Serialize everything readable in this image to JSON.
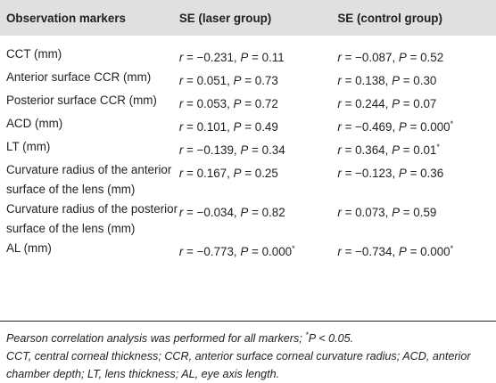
{
  "table": {
    "headers": [
      "Observation markers",
      "SE (laser group)",
      "SE (control group)"
    ],
    "rows": [
      {
        "marker": "CCT (mm)",
        "laser": {
          "r": "−0.231",
          "p": "0.11",
          "sig": ""
        },
        "control": {
          "r": "−0.087",
          "p": "0.52",
          "sig": ""
        }
      },
      {
        "marker": "Anterior surface CCR (mm)",
        "laser": {
          "r": "0.051",
          "p": "0.73",
          "sig": ""
        },
        "control": {
          "r": "0.138",
          "p": "0.30",
          "sig": ""
        }
      },
      {
        "marker": "Posterior surface CCR (mm)",
        "laser": {
          "r": "0.053",
          "p": "0.72",
          "sig": ""
        },
        "control": {
          "r": "0.244",
          "p": "0.07",
          "sig": ""
        }
      },
      {
        "marker": "ACD (mm)",
        "laser": {
          "r": "0.101",
          "p": "0.49",
          "sig": ""
        },
        "control": {
          "r": "−0.469",
          "p": "0.000",
          "sig": "*"
        }
      },
      {
        "marker": "LT (mm)",
        "laser": {
          "r": "−0.139",
          "p": "0.34",
          "sig": ""
        },
        "control": {
          "r": "0.364",
          "p": "0.01",
          "sig": "*"
        }
      },
      {
        "marker": "Curvature radius of the anterior surface of the lens (mm)",
        "laser": {
          "r": "0.167",
          "p": "0.25",
          "sig": ""
        },
        "control": {
          "r": "−0.123",
          "p": "0.36",
          "sig": ""
        }
      },
      {
        "marker": "Curvature radius of the posterior surface of the lens (mm)",
        "laser": {
          "r": "−0.034",
          "p": "0.82",
          "sig": ""
        },
        "control": {
          "r": "0.073",
          "p": "0.59",
          "sig": ""
        }
      },
      {
        "marker": "AL (mm)",
        "laser": {
          "r": "−0.773",
          "p": "0.000",
          "sig": "*"
        },
        "control": {
          "r": "−0.734",
          "p": "0.000",
          "sig": "*"
        }
      }
    ]
  },
  "notes": {
    "line1_prefix": "Pearson correlation analysis was performed for all markers; ",
    "line1_star": "*",
    "line1_suffix": "P < 0.05.",
    "line2": "CCT, central corneal thickness; CCR, anterior surface corneal curvature radius; ACD, anterior chamber depth; LT, lens thickness; AL, eye axis length."
  },
  "symbols": {
    "r": "r",
    "p": "P"
  }
}
